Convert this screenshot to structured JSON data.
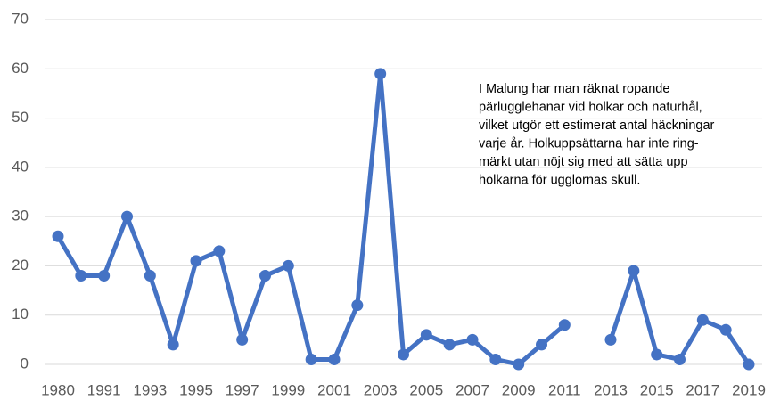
{
  "chart_data": {
    "type": "line",
    "categories": [
      "1980",
      null,
      "1991",
      null,
      "1993",
      null,
      "1995",
      null,
      "1997",
      null,
      "1999",
      null,
      "2001",
      null,
      "2003",
      null,
      "2005",
      null,
      "2007",
      null,
      "2009",
      null,
      "2011",
      null,
      "2013",
      null,
      "2015",
      null,
      "2017",
      null,
      "2019"
    ],
    "values": [
      26,
      18,
      18,
      30,
      18,
      4,
      21,
      23,
      5,
      18,
      20,
      1,
      1,
      12,
      59,
      2,
      6,
      4,
      5,
      1,
      0,
      4,
      8,
      null,
      5,
      19,
      2,
      1,
      9,
      7,
      0
    ],
    "color": "#4472c4",
    "ylim": [
      0,
      70
    ],
    "yticks": [
      0,
      10,
      20,
      30,
      40,
      50,
      60,
      70
    ],
    "grid": true,
    "annotation": [
      "I Malung har man räknat ropande",
      "pärlugglehanar vid holkar och naturhål,",
      "vilket utgör ett estimerat antal häckningar",
      "varje år. Holkuppsättarna har inte ring-",
      "märkt utan nöjt sig med att sätta upp",
      "holkarna för ugglornas skull."
    ]
  }
}
